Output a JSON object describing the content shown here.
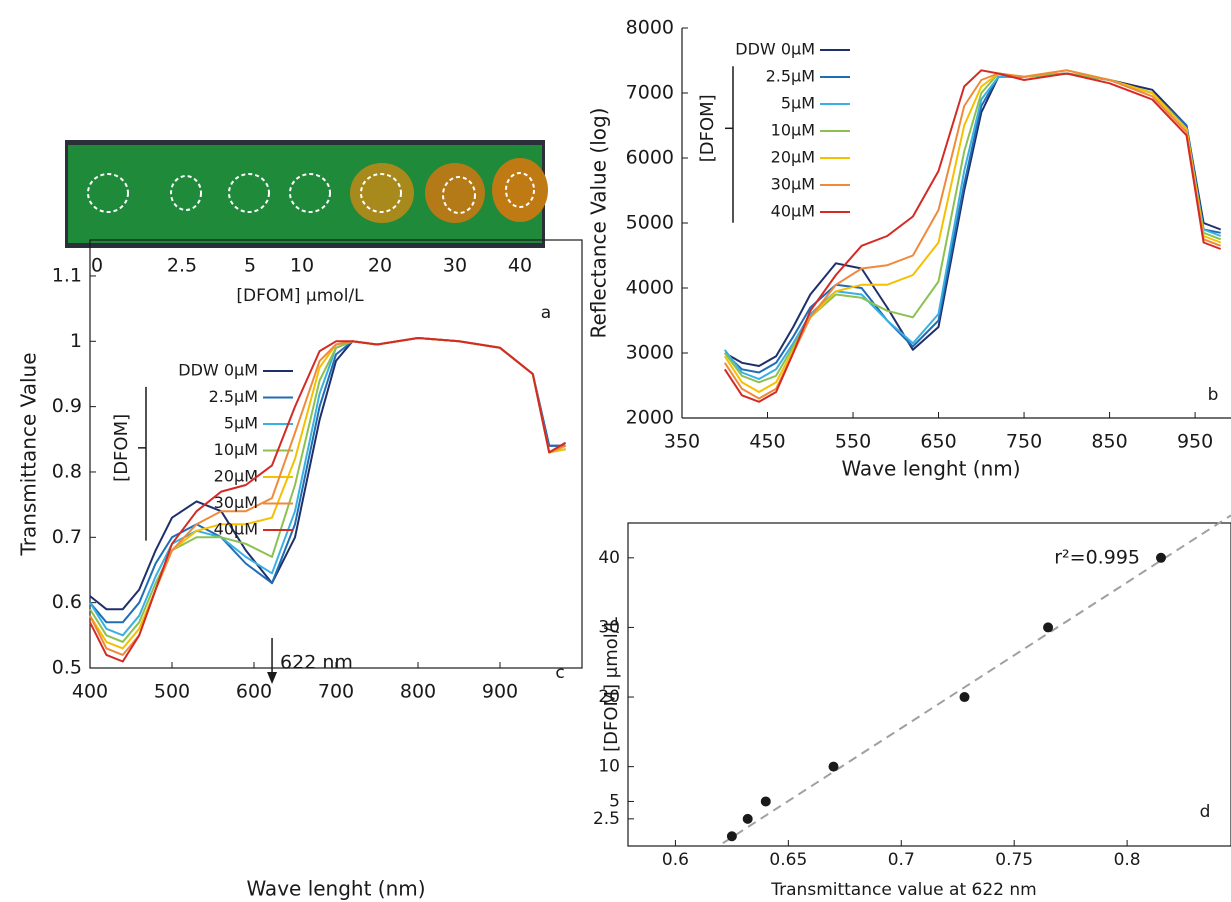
{
  "panel_a": {
    "labels": [
      0,
      2.5,
      5,
      10,
      20,
      30,
      40
    ],
    "axis_label": "[DFOM] μmol/L",
    "panel_label": "a"
  },
  "chart_data": [
    {
      "type": "line",
      "panel_label": "b",
      "x_label": "Wave lenght (nm)",
      "y_label": "Reflectance Value (log)",
      "legend_title": "[DFOM]",
      "xlim": [
        350,
        992
      ],
      "xticks": [
        350,
        450,
        550,
        650,
        750,
        850,
        950
      ],
      "ylim": [
        2000,
        8000
      ],
      "yticks": [
        2000,
        3000,
        4000,
        5000,
        6000,
        7000,
        8000
      ],
      "frame": false,
      "x": [
        400,
        420,
        440,
        460,
        480,
        500,
        530,
        560,
        590,
        620,
        650,
        680,
        700,
        720,
        750,
        800,
        850,
        900,
        940,
        960,
        980
      ],
      "series": [
        {
          "name": "DDW 0µM",
          "color": "#1f2f6b",
          "values": [
            3000,
            2850,
            2800,
            2950,
            3400,
            3900,
            4380,
            4300,
            3700,
            3050,
            3400,
            5500,
            6700,
            7250,
            7250,
            7300,
            7200,
            7050,
            6500,
            5000,
            4900
          ]
        },
        {
          "name": "2.5µM",
          "color": "#1f6db5",
          "values": [
            3000,
            2750,
            2700,
            2850,
            3250,
            3700,
            4050,
            4000,
            3500,
            3100,
            3500,
            5600,
            6800,
            7250,
            7250,
            7300,
            7200,
            7000,
            6500,
            4900,
            4850
          ]
        },
        {
          "name": "5µM",
          "color": "#3ab0e2",
          "values": [
            3050,
            2700,
            2600,
            2750,
            3150,
            3600,
            3950,
            3900,
            3500,
            3150,
            3600,
            5800,
            6900,
            7250,
            7250,
            7300,
            7200,
            7000,
            6450,
            4900,
            4800
          ]
        },
        {
          "name": "10µM",
          "color": "#8cc152",
          "values": [
            3000,
            2650,
            2550,
            2650,
            3100,
            3550,
            3900,
            3850,
            3650,
            3550,
            4100,
            6100,
            7000,
            7300,
            7250,
            7300,
            7200,
            7000,
            6450,
            4850,
            4750
          ]
        },
        {
          "name": "20µM",
          "color": "#f5c000",
          "values": [
            2950,
            2550,
            2400,
            2550,
            3050,
            3550,
            3950,
            4050,
            4050,
            4200,
            4700,
            6500,
            7100,
            7300,
            7250,
            7350,
            7200,
            7000,
            6450,
            4800,
            4700
          ]
        },
        {
          "name": "30µM",
          "color": "#ef8a3c",
          "values": [
            2850,
            2450,
            2300,
            2450,
            3000,
            3550,
            4050,
            4300,
            4350,
            4500,
            5200,
            6800,
            7200,
            7300,
            7250,
            7350,
            7200,
            6950,
            6400,
            4750,
            4650
          ]
        },
        {
          "name": "40µM",
          "color": "#d42a25",
          "values": [
            2750,
            2350,
            2250,
            2400,
            3000,
            3650,
            4200,
            4650,
            4800,
            5100,
            5800,
            7100,
            7350,
            7300,
            7200,
            7300,
            7150,
            6900,
            6350,
            4700,
            4600
          ]
        }
      ]
    },
    {
      "type": "line",
      "panel_label": "c",
      "x_label": "Wave lenght (nm)",
      "y_label": "Transmittance Value",
      "legend_title": "[DFOM]",
      "xlim": [
        400,
        1000
      ],
      "xticks": [
        400,
        500,
        600,
        700,
        800,
        900
      ],
      "ylim": [
        0.5,
        1.155
      ],
      "yticks": [
        0.5,
        0.6,
        0.7,
        0.8,
        0.9,
        1,
        1.1
      ],
      "frame": true,
      "annotation": {
        "text": "622 nm",
        "x": 622
      },
      "x": [
        400,
        420,
        440,
        460,
        480,
        500,
        530,
        560,
        590,
        622,
        650,
        680,
        700,
        720,
        750,
        800,
        850,
        900,
        940,
        960,
        980
      ],
      "series": [
        {
          "name": "DDW 0µM",
          "color": "#1f2f6b",
          "values": [
            0.61,
            0.59,
            0.59,
            0.62,
            0.68,
            0.73,
            0.755,
            0.74,
            0.68,
            0.63,
            0.7,
            0.88,
            0.97,
            1.0,
            0.995,
            1.005,
            1.0,
            0.99,
            0.95,
            0.84,
            0.84
          ]
        },
        {
          "name": "2.5µM",
          "color": "#1f6db5",
          "values": [
            0.6,
            0.57,
            0.57,
            0.6,
            0.66,
            0.7,
            0.72,
            0.7,
            0.66,
            0.63,
            0.72,
            0.9,
            0.98,
            1.0,
            0.995,
            1.005,
            1.0,
            0.99,
            0.95,
            0.84,
            0.84
          ]
        },
        {
          "name": "5µM",
          "color": "#3ab0e2",
          "values": [
            0.6,
            0.56,
            0.55,
            0.58,
            0.64,
            0.69,
            0.71,
            0.7,
            0.67,
            0.645,
            0.74,
            0.92,
            0.99,
            1.0,
            0.995,
            1.005,
            1.0,
            0.99,
            0.95,
            0.83,
            0.835
          ]
        },
        {
          "name": "10µM",
          "color": "#8cc152",
          "values": [
            0.59,
            0.55,
            0.54,
            0.57,
            0.63,
            0.68,
            0.7,
            0.7,
            0.69,
            0.67,
            0.78,
            0.94,
            0.99,
            1.0,
            0.995,
            1.005,
            1.0,
            0.99,
            0.95,
            0.83,
            0.835
          ]
        },
        {
          "name": "20µM",
          "color": "#f5c000",
          "values": [
            0.58,
            0.54,
            0.53,
            0.56,
            0.62,
            0.68,
            0.71,
            0.72,
            0.72,
            0.73,
            0.82,
            0.96,
            0.995,
            1.0,
            0.995,
            1.005,
            1.0,
            0.99,
            0.95,
            0.83,
            0.835
          ]
        },
        {
          "name": "30µM",
          "color": "#ef8a3c",
          "values": [
            0.58,
            0.53,
            0.52,
            0.55,
            0.62,
            0.68,
            0.72,
            0.74,
            0.74,
            0.76,
            0.86,
            0.97,
            0.995,
            1.0,
            0.995,
            1.005,
            1.0,
            0.99,
            0.95,
            0.83,
            0.84
          ]
        },
        {
          "name": "40µM",
          "color": "#d42a25",
          "values": [
            0.57,
            0.52,
            0.51,
            0.55,
            0.62,
            0.69,
            0.74,
            0.77,
            0.78,
            0.81,
            0.9,
            0.985,
            1.0,
            1.0,
            0.995,
            1.005,
            1.0,
            0.99,
            0.95,
            0.83,
            0.845
          ]
        }
      ]
    },
    {
      "type": "scatter",
      "panel_label": "d",
      "x_label": "Transmittance value at 622 nm",
      "y_label": "[DFOM] μmol/L",
      "annotation": "r²=0.995",
      "xlim": [
        0.579,
        0.846
      ],
      "xticks": [
        0.6,
        0.65,
        0.7,
        0.75,
        0.8
      ],
      "ylim": [
        -1.4,
        45
      ],
      "yticks": [
        2.5,
        5,
        10,
        20,
        30,
        40
      ],
      "color": "#1a1a1a",
      "x": [
        0.625,
        0.632,
        0.64,
        0.67,
        0.728,
        0.765,
        0.815
      ],
      "values": [
        0,
        2.5,
        5,
        10,
        20,
        30,
        40
      ],
      "fit_line": {
        "x": [
          0.621,
          0.846
        ],
        "y": [
          -1,
          46.1
        ],
        "color": "#a0a0a0"
      }
    }
  ]
}
